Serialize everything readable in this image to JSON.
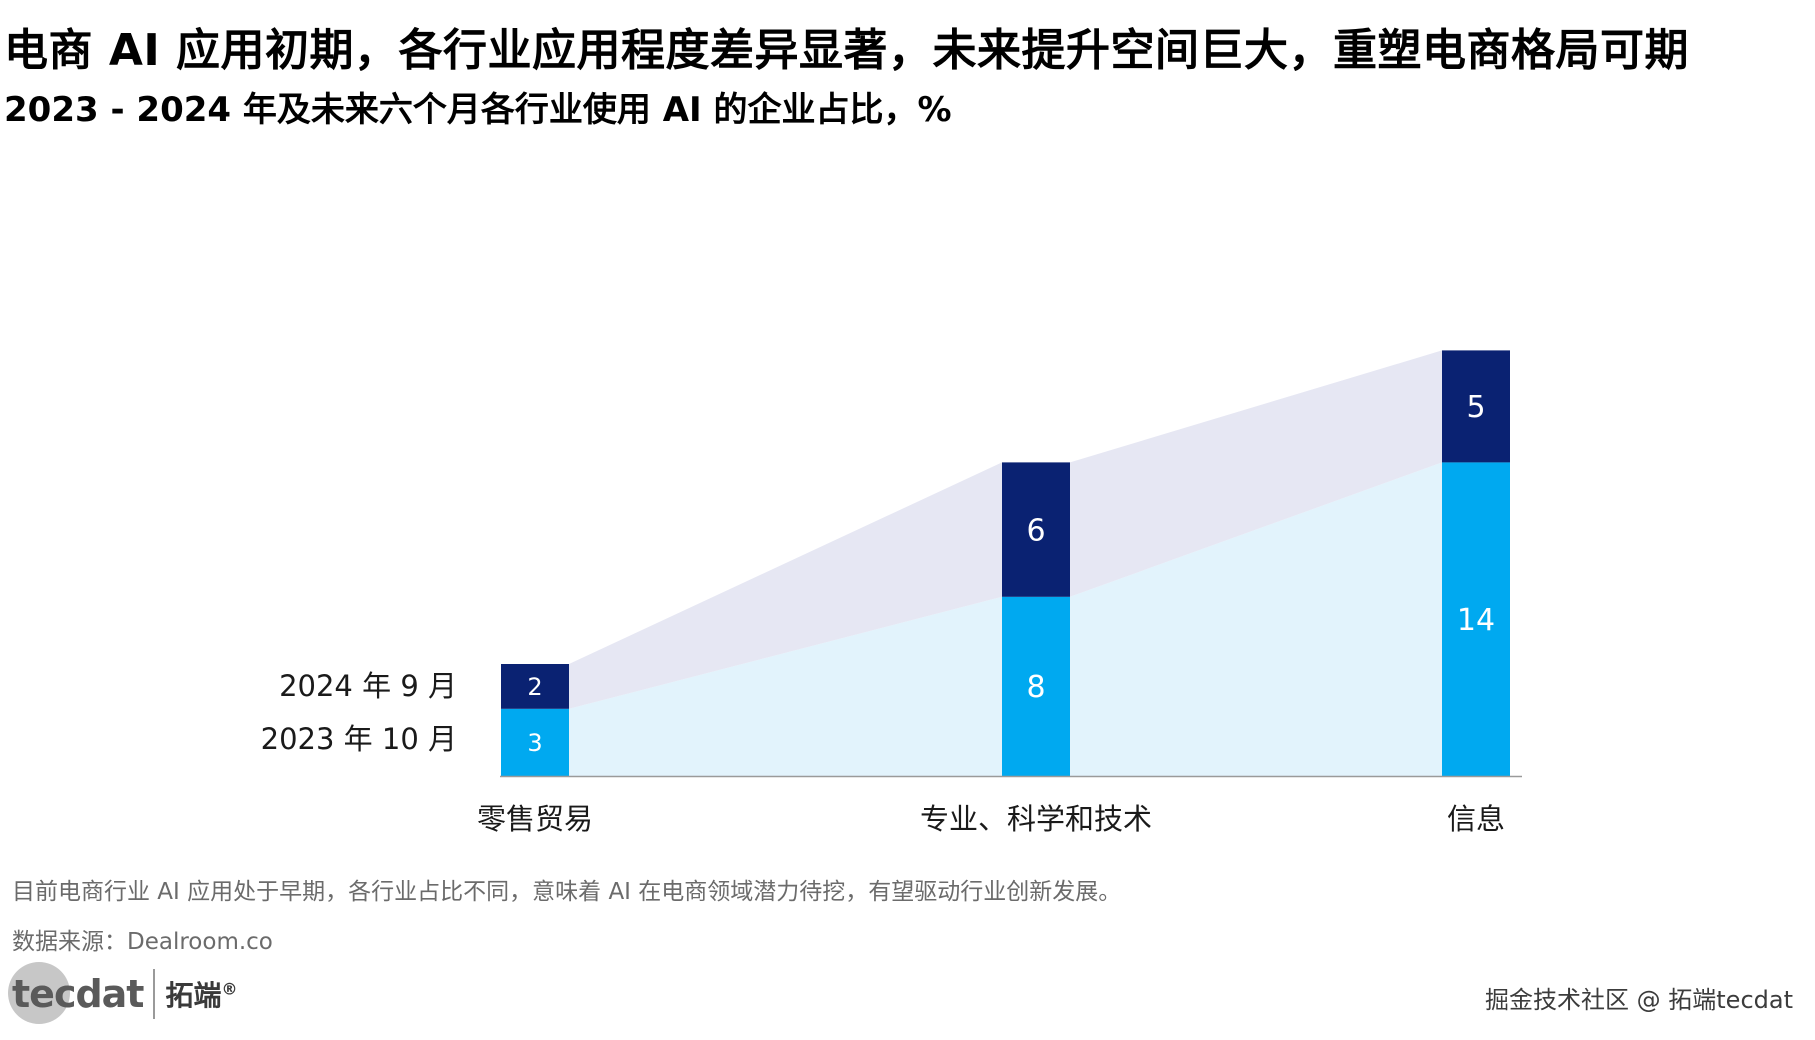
{
  "title": "电商 AI 应用初期，各行业应用程度差异显著，未来提升空间巨大，重塑电商格局可期",
  "subtitle": "2023 - 2024 年及未来六个月各行业使用  AI 的企业占比，%",
  "note": "目前电商行业 AI 应用处于早期，各行业占比不同，意味着 AI 在电商领域潜力待挖，有望驱动行业创新发展。",
  "source": "数据来源：Dealroom.co",
  "logo": {
    "text": "tecdat",
    "cn": "拓端",
    "reg": "®"
  },
  "watermark": "掘金技术社区 @ 拓端tecdat",
  "colors": {
    "base": "#00A9F0",
    "increment": "#0A2272",
    "base_area": "#E2F3FC",
    "increment_area": "#E6E7F3",
    "axis": "#9a9a9a"
  },
  "chart_data": {
    "type": "bar",
    "stacked": true,
    "categories": [
      "零售贸易",
      "专业、科学和技术",
      "信息"
    ],
    "series": [
      {
        "name": "2023 年 10 月",
        "values": [
          3,
          8,
          14
        ]
      },
      {
        "name": "2024 年  9 月",
        "values": [
          2,
          6,
          5
        ]
      }
    ],
    "ylim": [
      0,
      20
    ],
    "legend": "left-of-first-bar",
    "grid": false
  }
}
